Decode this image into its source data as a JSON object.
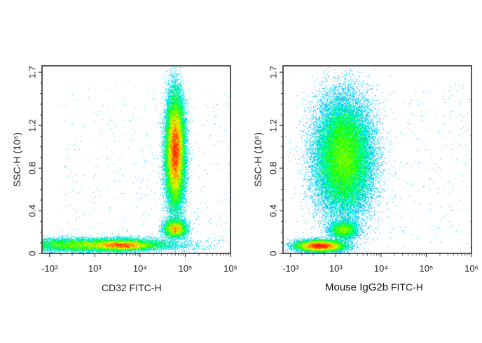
{
  "chart_data": [
    {
      "type": "scatter",
      "subtype": "density-plot",
      "xlabel": "CD32 FITC-H",
      "xlabel_prefix": "",
      "ylabel": "SSC-H  (10⁶)",
      "x_scale": "biexponential",
      "x_ticks": [
        "-10³",
        "10³",
        "10⁴",
        "10⁵",
        "10⁶"
      ],
      "y_ticks": [
        "0",
        "0.4",
        "0.8",
        "1.2",
        "1.7"
      ],
      "ylim": [
        0,
        1.76
      ],
      "grid": false,
      "colormap": [
        "#0000ff",
        "#00ffff",
        "#00ff00",
        "#ffff00",
        "#ff0000"
      ],
      "populations": [
        {
          "x": 1000,
          "x_sd_decades": 0.9,
          "y": 0.08,
          "y_sd": 0.03,
          "events": 14000
        },
        {
          "x": 4000,
          "x_sd_decades": 0.3,
          "y": 0.075,
          "y_sd": 0.022,
          "events": 7000
        },
        {
          "x": 60000,
          "x_sd_decades": 0.12,
          "y": 0.23,
          "y_sd": 0.04,
          "events": 5000
        },
        {
          "x": 60000,
          "x_sd_decades": 0.1,
          "y": 0.95,
          "y_sd": 0.25,
          "events": 38000
        }
      ]
    },
    {
      "type": "scatter",
      "subtype": "density-plot",
      "xlabel": "FITC-H",
      "xlabel_prefix": "Mouse IgG2b",
      "ylabel": "SSC-H  (10⁶)",
      "x_scale": "biexponential",
      "x_ticks": [
        "-10³",
        "10³",
        "10⁴",
        "10⁵",
        "10⁶"
      ],
      "y_ticks": [
        "0",
        "0.4",
        "0.8",
        "1.2",
        "1.7"
      ],
      "ylim": [
        0,
        1.76
      ],
      "grid": false,
      "colormap": [
        "#0000ff",
        "#00ffff",
        "#00ff00",
        "#ffff00",
        "#ff0000"
      ],
      "populations": [
        {
          "x": 300,
          "x_sd_decades": 0.25,
          "y": 0.07,
          "y_sd": 0.025,
          "events": 16000
        },
        {
          "x": 1500,
          "x_sd_decades": 0.15,
          "y": 0.22,
          "y_sd": 0.04,
          "events": 4000
        },
        {
          "x": 1500,
          "x_sd_decades": 0.3,
          "y": 0.9,
          "y_sd": 0.26,
          "events": 42000
        }
      ]
    }
  ]
}
